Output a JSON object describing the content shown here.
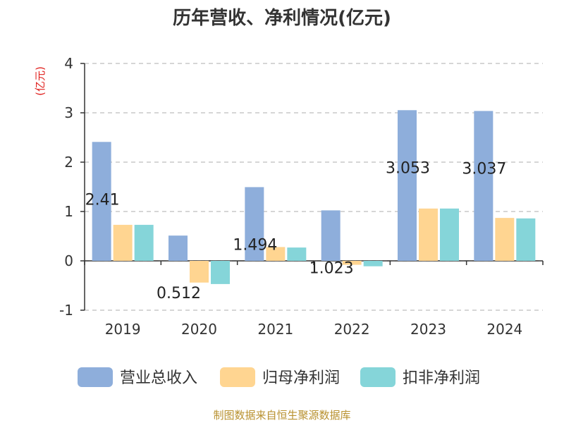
{
  "colors": {
    "revenue": "#8eaedb",
    "net_profit": "#ffd591",
    "deducted_profit": "#85d5d9",
    "title": "#333333",
    "unit": "#e0201d",
    "source": "#b8912f",
    "grid": "#c8c8c8",
    "axis": "#333333"
  },
  "chart_data": {
    "type": "bar",
    "title": "历年营收、净利情况(亿元)",
    "ylabel": "(亿元)",
    "xlabel": "",
    "categories": [
      "2019",
      "2020",
      "2021",
      "2022",
      "2023",
      "2024"
    ],
    "ylim": [
      -1,
      4
    ],
    "yticks": [
      -1,
      0,
      1,
      2,
      3,
      4
    ],
    "grid": true,
    "grid_style": "dashed",
    "legend_position": "bottom",
    "series": [
      {
        "name": "营业总收入",
        "color": "#8eaedb",
        "values": [
          2.41,
          0.512,
          1.494,
          1.023,
          3.053,
          3.037
        ],
        "data_labels": [
          "2.41",
          "0.512",
          "1.494",
          "1.023",
          "3.053",
          "3.037"
        ]
      },
      {
        "name": "归母净利润",
        "color": "#ffd591",
        "values": [
          0.73,
          -0.44,
          0.28,
          -0.08,
          1.06,
          0.87
        ]
      },
      {
        "name": "扣非净利润",
        "color": "#85d5d9",
        "values": [
          0.73,
          -0.47,
          0.27,
          -0.11,
          1.06,
          0.86
        ]
      }
    ]
  },
  "footer": {
    "source": "制图数据来自恒生聚源数据库"
  }
}
